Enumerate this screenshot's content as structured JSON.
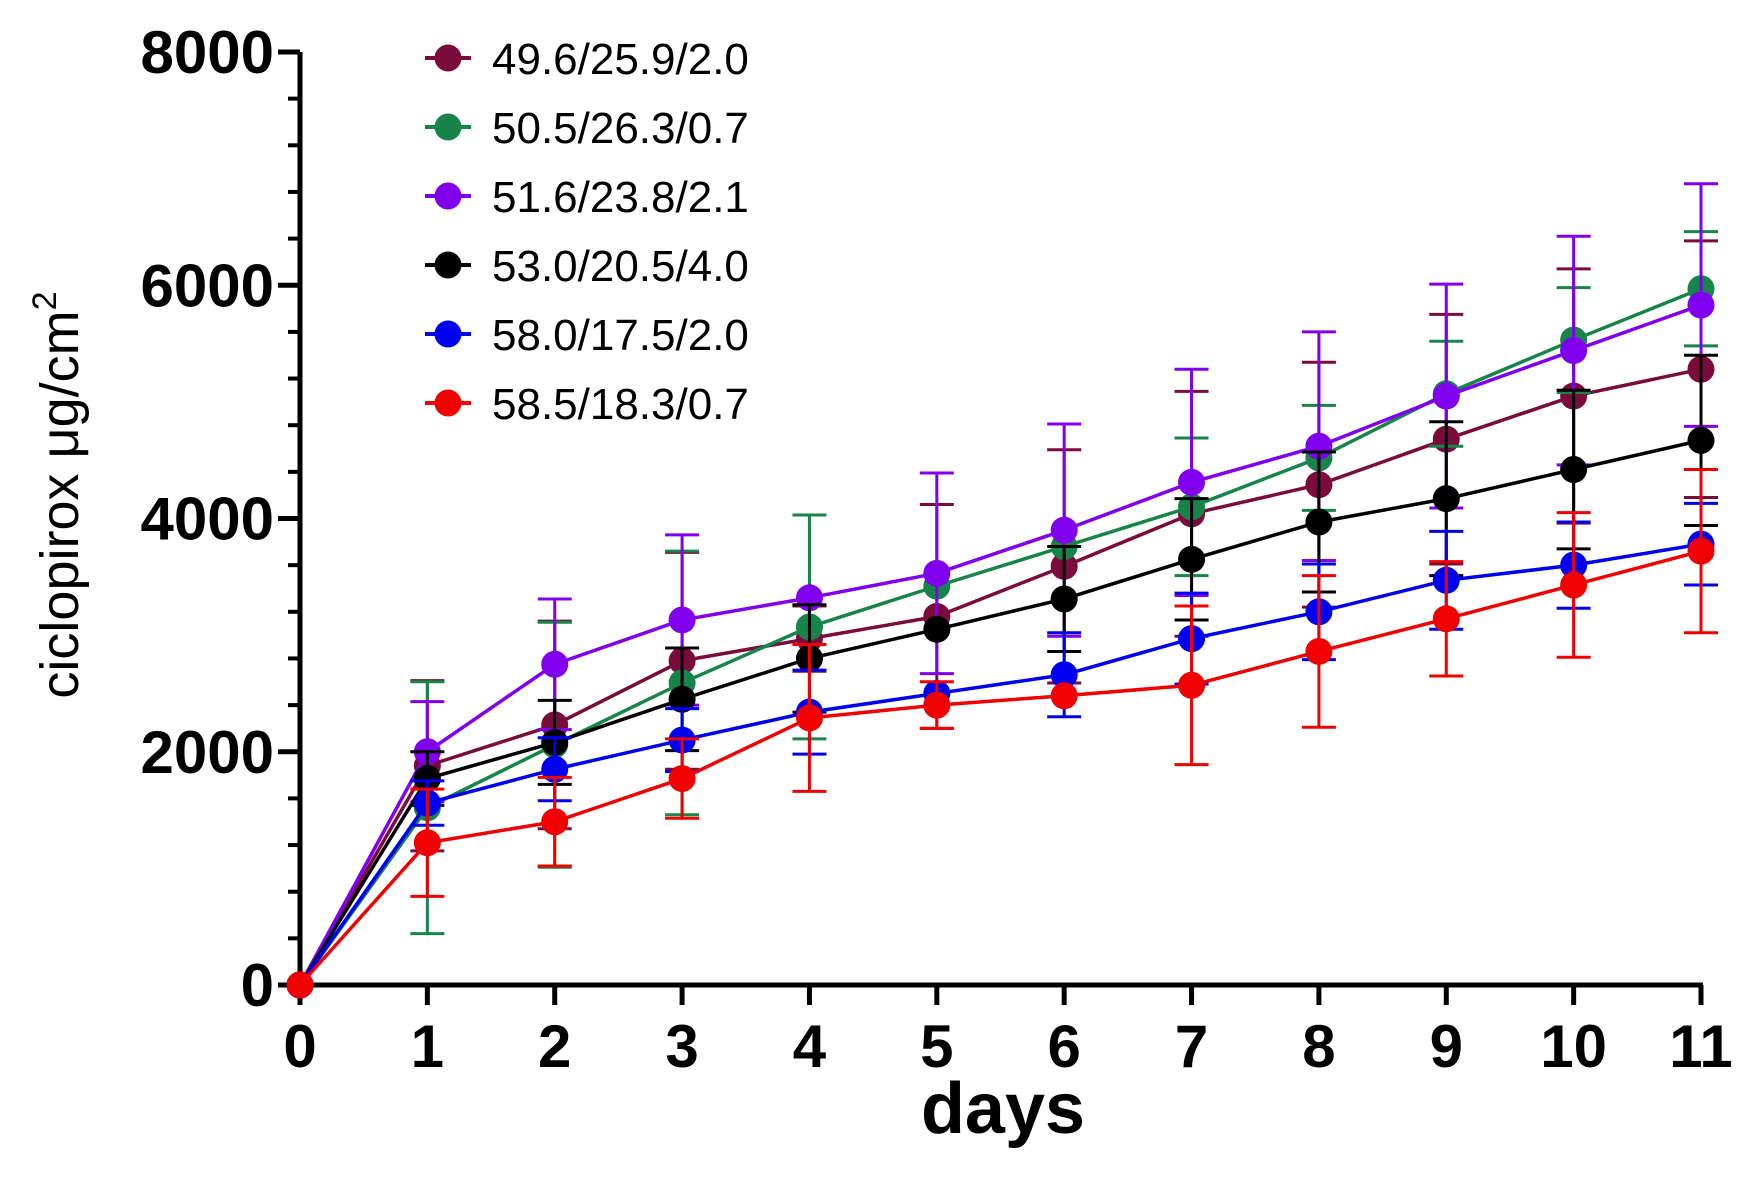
{
  "chart_data": {
    "type": "line",
    "xlabel": "days",
    "ylabel": "ciclopirox μg/cm",
    "ylabel_superscript": "2",
    "xlim": [
      0,
      11
    ],
    "ylim": [
      0,
      8000
    ],
    "x_ticks": [
      0,
      1,
      2,
      3,
      4,
      5,
      6,
      7,
      8,
      9,
      10,
      11
    ],
    "y_ticks": [
      0,
      2000,
      4000,
      6000,
      8000
    ],
    "y_minor_step": 400,
    "grid": false,
    "legend_position": "top-left",
    "series": [
      {
        "name": "49.6/25.9/2.0",
        "color": "#7a0c3c",
        "x": [
          0,
          1,
          2,
          3,
          4,
          5,
          6,
          7,
          8,
          9,
          10,
          11
        ],
        "y": [
          0,
          1880,
          2230,
          2780,
          2970,
          3160,
          3590,
          4040,
          4290,
          4680,
          5050,
          5280
        ],
        "err": [
          0,
          730,
          890,
          930,
          280,
          960,
          1000,
          1050,
          1050,
          1070,
          1090,
          1100
        ]
      },
      {
        "name": "50.5/26.3/0.7",
        "color": "#17844a",
        "x": [
          0,
          1,
          2,
          3,
          4,
          5,
          6,
          7,
          8,
          9,
          10,
          11
        ],
        "y": [
          0,
          1520,
          2060,
          2590,
          3070,
          3420,
          3760,
          4100,
          4520,
          5070,
          5530,
          5970
        ],
        "err": [
          0,
          1080,
          1050,
          1130,
          960,
          0,
          0,
          590,
          450,
          450,
          450,
          490
        ]
      },
      {
        "name": "51.6/23.8/2.1",
        "color": "#8000ee",
        "x": [
          0,
          1,
          2,
          3,
          4,
          5,
          6,
          7,
          8,
          9,
          10,
          11
        ],
        "y": [
          0,
          2000,
          2750,
          3130,
          3320,
          3530,
          3900,
          4310,
          4620,
          5050,
          5440,
          5830
        ],
        "err": [
          0,
          430,
          560,
          730,
          0,
          860,
          910,
          970,
          980,
          960,
          980,
          1040
        ]
      },
      {
        "name": "53.0/20.5/4.0",
        "color": "#000000",
        "x": [
          0,
          1,
          2,
          3,
          4,
          5,
          6,
          7,
          8,
          9,
          10,
          11
        ],
        "y": [
          0,
          1770,
          2080,
          2450,
          2800,
          3050,
          3310,
          3650,
          3970,
          4170,
          4420,
          4670
        ],
        "err": [
          0,
          230,
          360,
          440,
          460,
          0,
          450,
          520,
          600,
          660,
          680,
          730
        ]
      },
      {
        "name": "58.0/17.5/2.0",
        "color": "#0000f0",
        "x": [
          0,
          1,
          2,
          3,
          4,
          5,
          6,
          7,
          8,
          9,
          10,
          11
        ],
        "y": [
          0,
          1560,
          1850,
          2100,
          2340,
          2500,
          2660,
          2970,
          3200,
          3470,
          3600,
          3780
        ],
        "err": [
          0,
          190,
          270,
          270,
          360,
          0,
          360,
          390,
          410,
          420,
          370,
          350
        ]
      },
      {
        "name": "58.5/18.3/0.7",
        "color": "#f00000",
        "x": [
          0,
          1,
          2,
          3,
          4,
          5,
          6,
          7,
          8,
          9,
          10,
          11
        ],
        "y": [
          0,
          1220,
          1400,
          1770,
          2290,
          2400,
          2480,
          2570,
          2860,
          3140,
          3430,
          3720
        ],
        "err": [
          0,
          460,
          380,
          340,
          630,
          200,
          0,
          680,
          650,
          490,
          620,
          700
        ]
      }
    ]
  }
}
